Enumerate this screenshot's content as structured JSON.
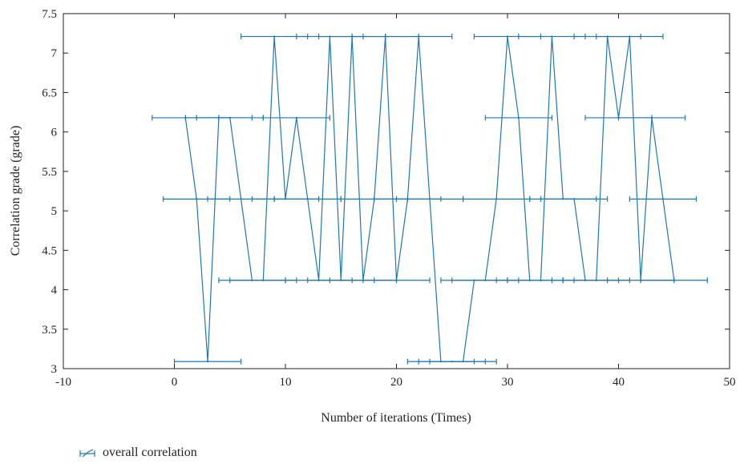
{
  "chart_data": {
    "type": "line",
    "xlabel": "Number of iterations (Times)",
    "ylabel": "Correlation grade (grade)",
    "xlim": [
      -10,
      50
    ],
    "ylim": [
      3,
      7.5
    ],
    "xticks": [
      -10,
      0,
      10,
      20,
      30,
      40,
      50
    ],
    "yticks": [
      3,
      3.5,
      4,
      4.5,
      5,
      5.5,
      6,
      6.5,
      7,
      7.5
    ],
    "xtick_labels": [
      "-10",
      "0",
      "10",
      "20",
      "30",
      "40",
      "50"
    ],
    "ytick_labels": [
      "3",
      "3.5",
      "4",
      "4.5",
      "5",
      "5.5",
      "6",
      "6.5",
      "7",
      "7.5"
    ],
    "error_bar_halfwidth": 3,
    "grid": false,
    "legend_position": "bottom-left",
    "series": [
      {
        "name": "overall correlation",
        "color": "#1f77b4",
        "x": [
          1,
          2,
          3,
          4,
          5,
          6,
          7,
          8,
          9,
          10,
          11,
          12,
          13,
          14,
          15,
          16,
          17,
          18,
          19,
          20,
          21,
          22,
          23,
          24,
          25,
          26,
          27,
          28,
          29,
          30,
          31,
          32,
          33,
          34,
          35,
          36,
          37,
          38,
          39,
          40,
          41,
          42,
          43,
          44,
          45
        ],
        "y": [
          6.18,
          5.15,
          3.09,
          6.18,
          6.18,
          5.15,
          4.12,
          4.12,
          7.21,
          5.15,
          6.18,
          5.15,
          4.12,
          7.21,
          4.12,
          7.21,
          4.12,
          5.15,
          7.21,
          4.12,
          5.15,
          7.21,
          5.15,
          3.09,
          3.09,
          3.09,
          4.12,
          4.12,
          5.15,
          7.21,
          6.18,
          4.12,
          4.12,
          7.21,
          5.15,
          5.15,
          4.12,
          4.12,
          7.21,
          6.18,
          7.21,
          4.12,
          6.18,
          5.15,
          4.12
        ]
      }
    ]
  }
}
